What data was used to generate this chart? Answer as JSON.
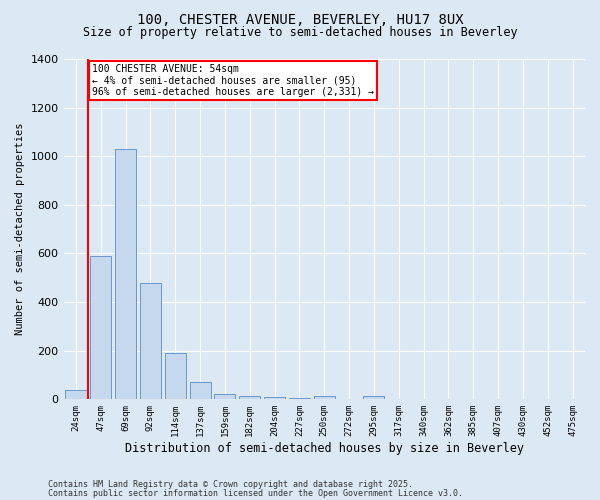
{
  "title1": "100, CHESTER AVENUE, BEVERLEY, HU17 8UX",
  "title2": "Size of property relative to semi-detached houses in Beverley",
  "xlabel": "Distribution of semi-detached houses by size in Beverley",
  "ylabel": "Number of semi-detached properties",
  "categories": [
    "24sqm",
    "47sqm",
    "69sqm",
    "92sqm",
    "114sqm",
    "137sqm",
    "159sqm",
    "182sqm",
    "204sqm",
    "227sqm",
    "250sqm",
    "272sqm",
    "295sqm",
    "317sqm",
    "340sqm",
    "362sqm",
    "385sqm",
    "407sqm",
    "430sqm",
    "452sqm",
    "475sqm"
  ],
  "values": [
    40,
    590,
    1030,
    480,
    190,
    70,
    20,
    15,
    10,
    5,
    15,
    0,
    15,
    0,
    0,
    0,
    0,
    0,
    0,
    0,
    0
  ],
  "bar_color": "#c5d8ee",
  "bar_edge_color": "#6699cc",
  "ylim": [
    0,
    1400
  ],
  "yticks": [
    0,
    200,
    400,
    600,
    800,
    1000,
    1200,
    1400
  ],
  "red_line_x": 0.5,
  "annotation_title": "100 CHESTER AVENUE: 54sqm",
  "annotation_line1": "← 4% of semi-detached houses are smaller (95)",
  "annotation_line2": "96% of semi-detached houses are larger (2,331) →",
  "footer1": "Contains HM Land Registry data © Crown copyright and database right 2025.",
  "footer2": "Contains public sector information licensed under the Open Government Licence v3.0.",
  "bg_color": "#dce9f5",
  "plot_bg_color": "#dce9f5",
  "grid_color": "#ffffff"
}
